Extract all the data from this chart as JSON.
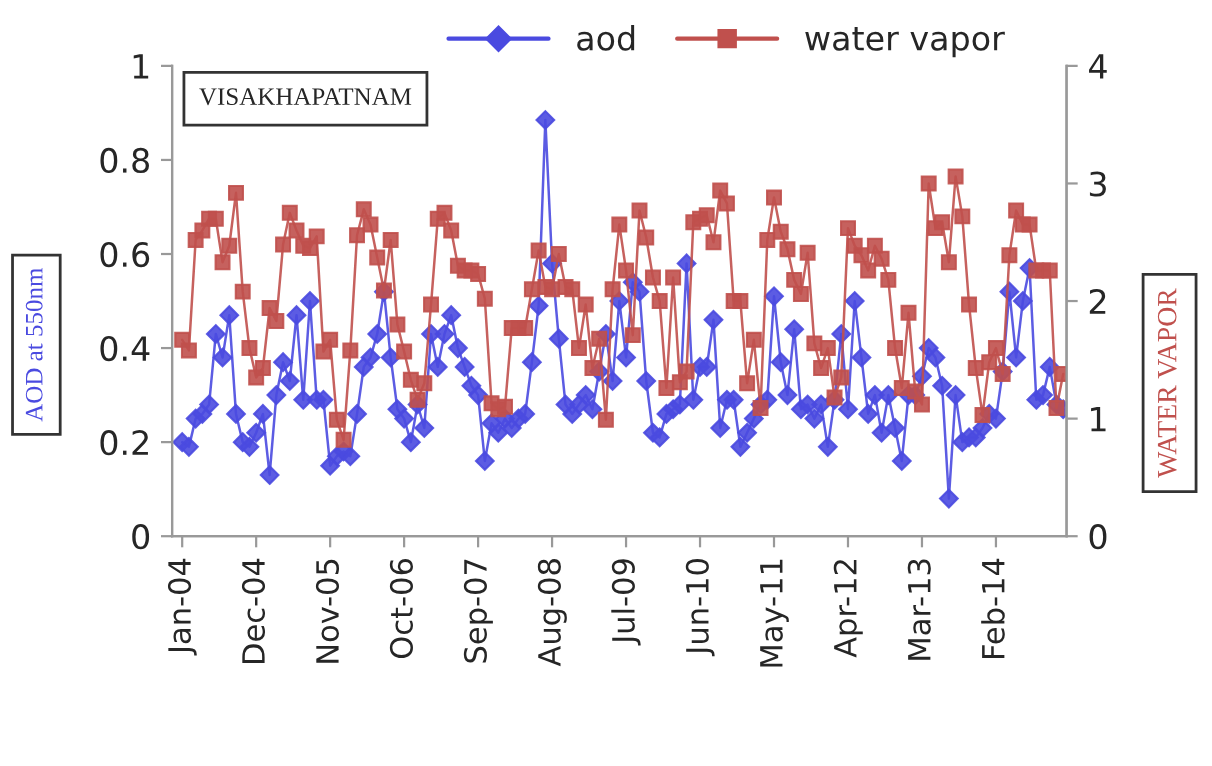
{
  "chart_data": {
    "type": "line",
    "title": "VISAKHAPATNAM",
    "ylabel": "AOD at 550nm",
    "y2label": "WATER VAPOR",
    "categories": [
      "Jan-04",
      null,
      null,
      null,
      null,
      null,
      null,
      null,
      null,
      null,
      null,
      "Dec-04",
      null,
      null,
      null,
      null,
      null,
      null,
      null,
      null,
      null,
      null,
      "Nov-05",
      null,
      null,
      null,
      null,
      null,
      null,
      null,
      null,
      null,
      null,
      "Oct-06",
      null,
      null,
      null,
      null,
      null,
      null,
      null,
      null,
      null,
      null,
      "Sep-07",
      null,
      null,
      null,
      null,
      null,
      null,
      null,
      null,
      null,
      null,
      "Aug-08",
      null,
      null,
      null,
      null,
      null,
      null,
      null,
      null,
      null,
      null,
      "Jul-09",
      null,
      null,
      null,
      null,
      null,
      null,
      null,
      null,
      null,
      null,
      "Jun-10",
      null,
      null,
      null,
      null,
      null,
      null,
      null,
      null,
      null,
      null,
      "May-11",
      null,
      null,
      null,
      null,
      null,
      null,
      null,
      null,
      null,
      null,
      "Apr-12",
      null,
      null,
      null,
      null,
      null,
      null,
      null,
      null,
      null,
      null,
      "Mar-13",
      null,
      null,
      null,
      null,
      null,
      null,
      null,
      null,
      null,
      null,
      "Feb-14",
      null,
      null,
      null,
      null,
      null,
      null,
      null,
      null,
      null,
      null
    ],
    "series": [
      {
        "name": "aod",
        "color": "#4a4ae0",
        "marker": "diamond",
        "values": [
          0.2,
          0.19,
          0.25,
          0.26,
          0.28,
          0.43,
          0.38,
          0.47,
          0.26,
          0.2,
          0.19,
          0.22,
          0.26,
          0.13,
          0.3,
          0.37,
          0.33,
          0.47,
          0.29,
          0.5,
          0.29,
          0.29,
          0.15,
          0.17,
          0.18,
          0.17,
          0.26,
          0.36,
          0.38,
          0.43,
          0.52,
          0.38,
          0.27,
          0.25,
          0.2,
          0.28,
          0.23,
          0.43,
          0.36,
          0.43,
          0.47,
          0.4,
          0.36,
          0.32,
          0.3,
          0.16,
          0.24,
          0.22,
          0.25,
          0.23,
          0.25,
          0.26,
          0.37,
          0.49,
          0.885,
          0.58,
          0.42,
          0.28,
          0.26,
          0.28,
          0.3,
          0.27,
          0.35,
          0.43,
          0.33,
          0.5,
          0.38,
          0.54,
          0.52,
          0.33,
          0.22,
          0.21,
          0.26,
          0.27,
          0.28,
          0.58,
          0.29,
          0.36,
          0.36,
          0.46,
          0.23,
          0.29,
          0.29,
          0.19,
          0.22,
          0.25,
          0.28,
          0.29,
          0.51,
          0.37,
          0.3,
          0.44,
          0.27,
          0.28,
          0.25,
          0.28,
          0.19,
          0.29,
          0.43,
          0.27,
          0.5,
          0.38,
          0.26,
          0.3,
          0.22,
          0.3,
          0.23,
          0.16,
          0.3,
          0.3,
          0.34,
          0.4,
          0.38,
          0.32,
          0.08,
          0.3,
          0.2,
          0.21,
          0.21,
          0.23,
          0.26,
          0.25,
          0.35,
          0.52,
          0.38,
          0.5,
          0.57,
          0.29,
          0.3,
          0.36,
          0.28,
          0.27
        ]
      },
      {
        "name": "water vapor",
        "color": "#c0504d",
        "marker": "square",
        "axis": "y2",
        "values": [
          1.67,
          1.58,
          2.52,
          2.6,
          2.7,
          2.7,
          2.33,
          2.47,
          2.92,
          2.08,
          1.6,
          1.35,
          1.43,
          1.94,
          1.83,
          2.48,
          2.75,
          2.6,
          2.47,
          2.45,
          2.55,
          1.57,
          1.67,
          0.99,
          0.82,
          1.58,
          2.56,
          2.78,
          2.65,
          2.37,
          2.09,
          2.52,
          1.8,
          1.57,
          1.33,
          1.16,
          1.3,
          1.97,
          2.7,
          2.75,
          2.6,
          2.3,
          2.26,
          2.26,
          2.23,
          2.02,
          1.13,
          1.08,
          1.1,
          1.77,
          1.77,
          1.77,
          2.1,
          2.43,
          2.12,
          2.1,
          2.4,
          2.12,
          2.1,
          1.6,
          1.97,
          1.43,
          1.68,
          0.99,
          2.1,
          2.65,
          2.26,
          1.71,
          2.77,
          2.54,
          2.2,
          2.0,
          1.26,
          2.2,
          1.31,
          1.4,
          2.67,
          2.7,
          2.73,
          2.5,
          2.94,
          2.83,
          2.0,
          2.0,
          1.3,
          1.67,
          1.09,
          2.52,
          2.88,
          2.59,
          2.44,
          2.18,
          2.06,
          2.41,
          1.64,
          1.43,
          1.6,
          1.18,
          1.35,
          2.62,
          2.47,
          2.39,
          2.26,
          2.47,
          2.36,
          2.18,
          1.6,
          1.26,
          1.9,
          1.23,
          1.12,
          3.0,
          2.62,
          2.67,
          2.33,
          3.06,
          2.72,
          1.97,
          1.43,
          1.03,
          1.48,
          1.6,
          1.38,
          2.39,
          2.77,
          2.65,
          2.65,
          2.26,
          2.26,
          2.26,
          1.09,
          1.38
        ]
      }
    ],
    "ylim": [
      0,
      1
    ],
    "yticks": [
      0,
      0.2,
      0.4,
      0.6,
      0.8,
      1
    ],
    "y2lim": [
      0,
      4
    ],
    "y2ticks": [
      0,
      1,
      2,
      3,
      4
    ],
    "grid": false,
    "legend": "top"
  }
}
